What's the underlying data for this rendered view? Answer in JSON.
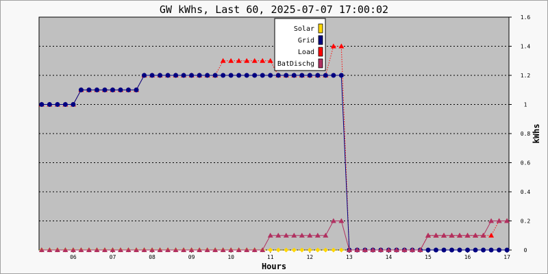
{
  "chart_data": {
    "type": "line",
    "title": "GW kWhs, Last 60, 2025-07-07 17:00:02",
    "xlabel": "Hours",
    "ylabel": "kWhs",
    "xlim": [
      5.133,
      17.05
    ],
    "ylim": [
      0,
      1.6
    ],
    "y_ticks": [
      0,
      0.2,
      0.4,
      0.6,
      0.8,
      1,
      1.2,
      1.4,
      1.6
    ],
    "y_tick_labels": [
      "0",
      "0.2",
      "0.4",
      "0.6",
      "0.8",
      "1",
      "1.2",
      "1.4",
      "1.6"
    ],
    "x_ticks": [
      6,
      7,
      8,
      9,
      10,
      11,
      12,
      13,
      14,
      15,
      16,
      17
    ],
    "x_tick_labels": [
      "06",
      "07",
      "08",
      "09",
      "10",
      "11",
      "12",
      "13",
      "14",
      "15",
      "16",
      "17"
    ],
    "grid": true,
    "background": "#c0c0c0",
    "legend_position": "top-center",
    "x": [
      5.2,
      5.4,
      5.6,
      5.8,
      6.0,
      6.2,
      6.4,
      6.6,
      6.8,
      7.0,
      7.2,
      7.4,
      7.6,
      7.8,
      8.0,
      8.2,
      8.4,
      8.6,
      8.8,
      9.0,
      9.2,
      9.4,
      9.6,
      9.8,
      10.0,
      10.2,
      10.4,
      10.6,
      10.8,
      11.0,
      11.2,
      11.4,
      11.6,
      11.8,
      12.0,
      12.2,
      12.4,
      12.6,
      12.8,
      13.0,
      13.2,
      13.4,
      13.6,
      13.8,
      14.0,
      14.2,
      14.4,
      14.6,
      14.8,
      15.0,
      15.2,
      15.4,
      15.6,
      15.8,
      16.0,
      16.2,
      16.4,
      16.6,
      16.8,
      17.0
    ],
    "series": [
      {
        "name": "Solar",
        "color": "#ffd700",
        "marker": "diamond",
        "line": "dotted",
        "values": [
          0,
          0,
          0,
          0,
          0,
          0,
          0,
          0,
          0,
          0,
          0,
          0,
          0,
          0,
          0,
          0,
          0,
          0,
          0,
          0,
          0,
          0,
          0,
          0,
          0,
          0,
          0,
          0,
          0,
          0,
          0,
          0,
          0,
          0,
          0,
          0,
          0,
          0,
          0,
          0,
          0,
          0,
          0,
          0,
          0,
          0,
          0,
          0,
          0,
          0,
          0,
          0,
          0,
          0,
          0,
          0,
          0,
          0,
          0,
          0
        ]
      },
      {
        "name": "Grid",
        "color": "#000080",
        "marker": "circle",
        "line": "solid",
        "values": [
          1,
          1,
          1,
          1,
          1,
          1.1,
          1.1,
          1.1,
          1.1,
          1.1,
          1.1,
          1.1,
          1.1,
          1.2,
          1.2,
          1.2,
          1.2,
          1.2,
          1.2,
          1.2,
          1.2,
          1.2,
          1.2,
          1.2,
          1.2,
          1.2,
          1.2,
          1.2,
          1.2,
          1.2,
          1.2,
          1.2,
          1.2,
          1.2,
          1.2,
          1.2,
          1.2,
          1.2,
          1.2,
          0,
          0,
          0,
          0,
          0,
          0,
          0,
          0,
          0,
          0,
          0,
          0,
          0,
          0,
          0,
          0,
          0,
          0,
          0,
          0,
          0
        ]
      },
      {
        "name": "Load",
        "color": "#ff0000",
        "marker": "triangle",
        "line": "dotted",
        "values": [
          1,
          1,
          1,
          1,
          1,
          1.1,
          1.1,
          1.1,
          1.1,
          1.1,
          1.1,
          1.1,
          1.1,
          1.2,
          1.2,
          1.2,
          1.2,
          1.2,
          1.2,
          1.2,
          1.2,
          1.2,
          1.2,
          1.3,
          1.3,
          1.3,
          1.3,
          1.3,
          1.3,
          1.3,
          1.2,
          1.2,
          1.2,
          1.2,
          1.2,
          1.2,
          1.2,
          1.4,
          1.4,
          0,
          0,
          0,
          0,
          0,
          0,
          0,
          0,
          0,
          0,
          0.1,
          0.1,
          0.1,
          0.1,
          0.1,
          0.1,
          0.1,
          0.1,
          0.1,
          0.2,
          0.2
        ]
      },
      {
        "name": "BatDischg",
        "color": "#b03060",
        "marker": "triangle",
        "line": "solid",
        "values": [
          0,
          0,
          0,
          0,
          0,
          0,
          0,
          0,
          0,
          0,
          0,
          0,
          0,
          0,
          0,
          0,
          0,
          0,
          0,
          0,
          0,
          0,
          0,
          0,
          0,
          0,
          0,
          0,
          0,
          0.1,
          0.1,
          0.1,
          0.1,
          0.1,
          0.1,
          0.1,
          0.1,
          0.2,
          0.2,
          0,
          0,
          0,
          0,
          0,
          0,
          0,
          0,
          0,
          0,
          0.1,
          0.1,
          0.1,
          0.1,
          0.1,
          0.1,
          0.1,
          0.1,
          0.2,
          0.2,
          0.2
        ]
      }
    ]
  }
}
